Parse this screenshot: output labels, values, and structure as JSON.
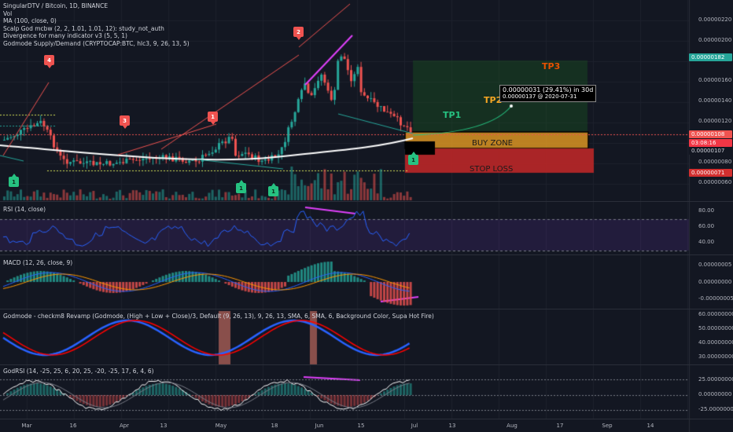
{
  "legend": {
    "title": "SingularDTV / Bitcoin, 1D, BINANCE",
    "lines": [
      "Vol",
      "MA (100, close, 0)",
      "Scalp God mcbw (2, 2, 1.01, 1.01, 12): study_not_auth",
      "Divergence for many indicator v3 (5, 5, 1)",
      "Godmode Supply/Demand (CRYPTOCAP:BTC, hlc3, 9, 26, 13, 5)"
    ]
  },
  "price_axis": {
    "ticks": [
      "0.00000220",
      "0.00000200",
      "0.00000180",
      "0.00000160",
      "0.00000140",
      "0.00000120",
      "0.00000100",
      "0.00000080",
      "0.00000060"
    ],
    "tags": {
      "tp3": "0.00000182",
      "current_price": "0.00000108",
      "countdown": "03:08:16",
      "level_107": "0.00000107",
      "stop": "0.00000071"
    },
    "colors": {
      "tp3": "#26a69a",
      "current": "#ef5350",
      "countdown": "#f23645",
      "stop": "#d32f2f"
    }
  },
  "time_axis": {
    "ticks": [
      "Mar",
      "16",
      "Apr",
      "13",
      "May",
      "18",
      "Jun",
      "15",
      "Jul",
      "13",
      "Aug",
      "17",
      "Sep",
      "14"
    ]
  },
  "signals": [
    {
      "label": "4",
      "kind": "sell"
    },
    {
      "label": "3",
      "kind": "sell"
    },
    {
      "label": "1",
      "kind": "sell"
    },
    {
      "label": "2",
      "kind": "sell"
    },
    {
      "label": "1",
      "kind": "buy"
    },
    {
      "label": "1",
      "kind": "buy"
    },
    {
      "label": "1",
      "kind": "buy"
    },
    {
      "label": "1",
      "kind": "buy"
    }
  ],
  "annotations": {
    "buy_zone": "BUY ZONE",
    "stop_loss": "STOP LOSS",
    "tp1": "TP1",
    "tp2": "TP2",
    "tp3": "TP3",
    "projection_line1": "0.00000031 (29.41%) in 30d",
    "projection_line2": "0.00000137 @ 2020-07-31"
  },
  "panes": {
    "rsi": {
      "title": "RSI (14, close)",
      "ticks": [
        "80.00",
        "60.00",
        "40.00"
      ]
    },
    "macd": {
      "title": "MACD (12, 26, close, 9)",
      "ticks": [
        "0.00000005",
        "0.00000000",
        "-0.00000005"
      ]
    },
    "godmode": {
      "title": "Godmode - checkm8 Revamp (Godmode, (High + Low + Close)/3, Default (9, 26, 13), 9, 26, 13, SMA, 6, SMA, 6, Background Color, Supa Hot Fire)",
      "ticks": [
        "60.00000000",
        "50.00000000",
        "40.00000000",
        "30.00000000"
      ]
    },
    "godrsi": {
      "title": "GodRSI (14, -25, 25, 6, 20, 25, -20, -25, 17, 6, 4, 6)",
      "ticks": [
        "25.00000000",
        "0.00000000",
        "-25.00000000"
      ]
    }
  },
  "colors": {
    "background": "#131722",
    "up": "#26a69a",
    "down": "#ef5350",
    "ma": "#ffffff",
    "divergence": "#e040fb",
    "rsi_line": "#2962ff",
    "godmode_red": "#ff0000",
    "godmode_blue": "#2962ff",
    "buy_zone": "#f5a623",
    "stop_zone": "#c62828",
    "tp_zone": "#1b5e20",
    "tp1": "#26c281",
    "tp2": "#f5a623",
    "tp3": "#e65100"
  }
}
